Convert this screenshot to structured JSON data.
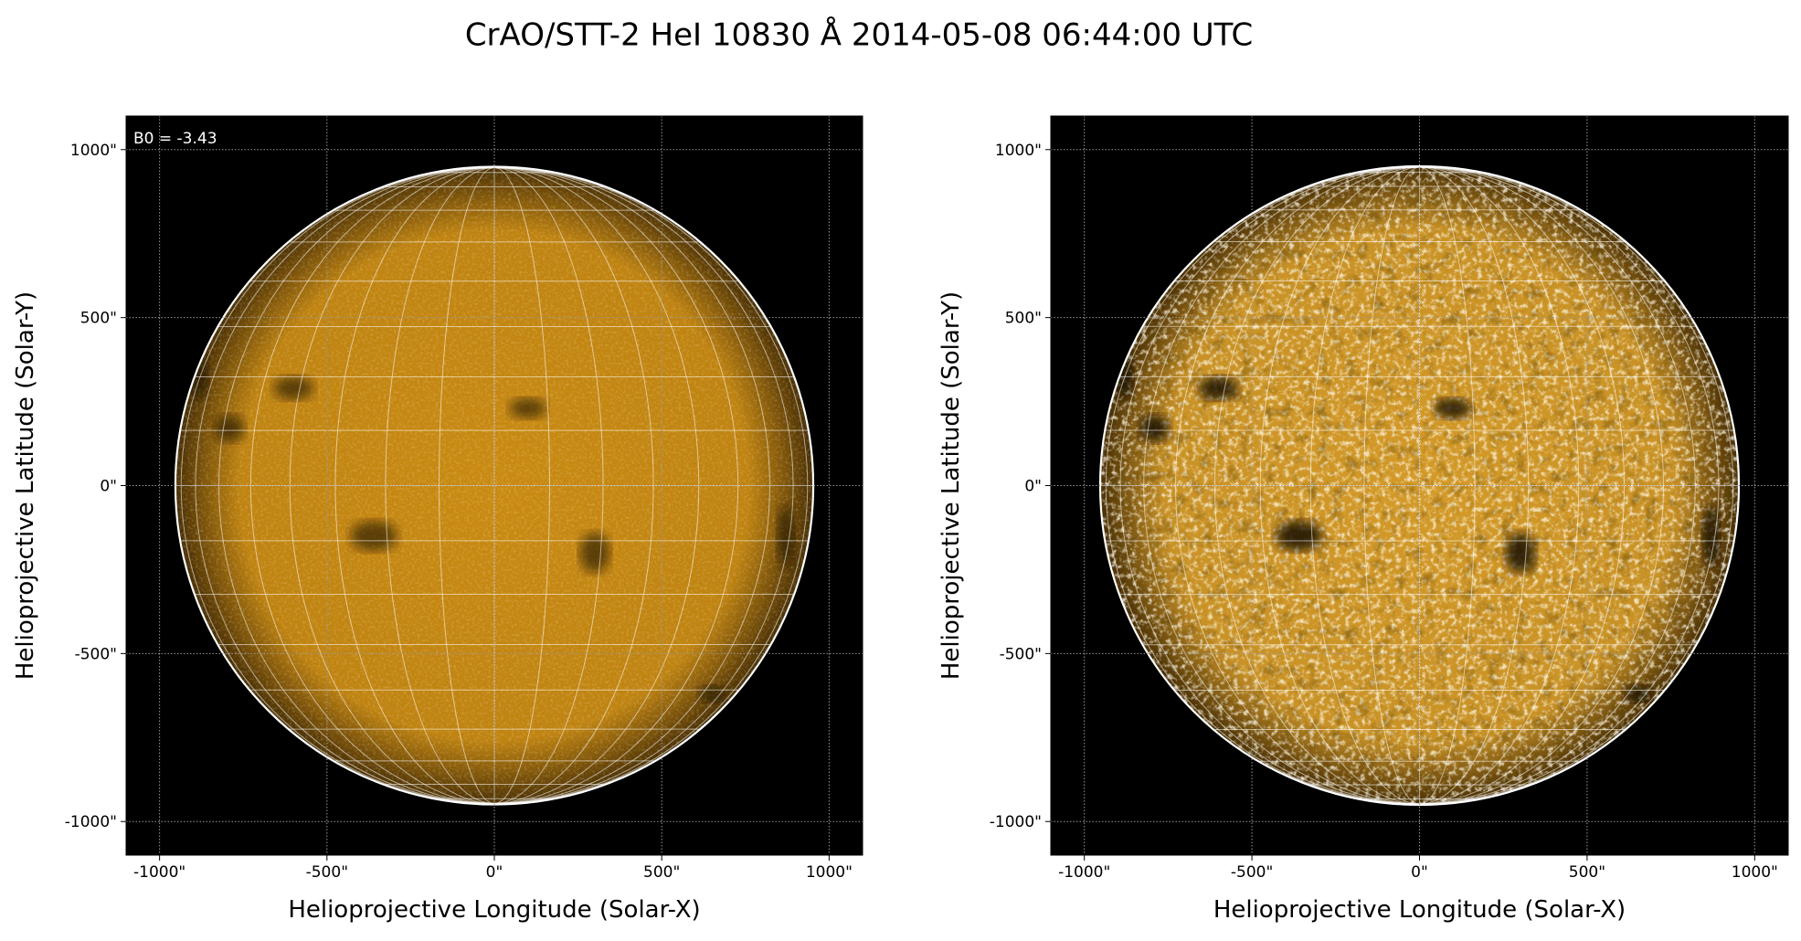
{
  "title": "CrAO/STT-2 HeI 10830 Å 2014-05-08 06:44:00 UTC",
  "chart_data": [
    {
      "type": "image",
      "color": "#c98a12",
      "grid_deg": 10,
      "disk_radius": 950,
      "annotation": "B0 = -3.43",
      "xlabel": "Helioprojective Longitude (Solar-X)",
      "ylabel": "Helioprojective Latitude (Solar-Y)",
      "xlim": [
        -1100,
        1100
      ],
      "ylim": [
        -1100,
        1100
      ],
      "xticks": [
        {
          "value": -1000,
          "label": "-1000\""
        },
        {
          "value": -500,
          "label": "-500\""
        },
        {
          "value": 0,
          "label": "0\""
        },
        {
          "value": 500,
          "label": "500\""
        },
        {
          "value": 1000,
          "label": "1000\""
        }
      ],
      "yticks": [
        {
          "value": -1000,
          "label": "-1000\""
        },
        {
          "value": -500,
          "label": "-500\""
        },
        {
          "value": 0,
          "label": "0\""
        },
        {
          "value": 500,
          "label": "500\""
        },
        {
          "value": 1000,
          "label": "1000\""
        }
      ]
    },
    {
      "type": "image",
      "color": "#d49a28",
      "grid_deg": 10,
      "disk_radius": 950,
      "xlabel": "Helioprojective Longitude (Solar-X)",
      "ylabel": "Helioprojective Latitude (Solar-Y)",
      "xlim": [
        -1100,
        1100
      ],
      "ylim": [
        -1100,
        1100
      ],
      "xticks": [
        {
          "value": -1000,
          "label": "-1000\""
        },
        {
          "value": -500,
          "label": "-500\""
        },
        {
          "value": 0,
          "label": "0\""
        },
        {
          "value": 500,
          "label": "500\""
        },
        {
          "value": 1000,
          "label": "1000\""
        }
      ],
      "yticks": [
        {
          "value": -1000,
          "label": "-1000\""
        },
        {
          "value": -500,
          "label": "-500\""
        },
        {
          "value": 0,
          "label": "0\""
        },
        {
          "value": 500,
          "label": "500\""
        },
        {
          "value": 1000,
          "label": "1000\""
        }
      ]
    }
  ]
}
